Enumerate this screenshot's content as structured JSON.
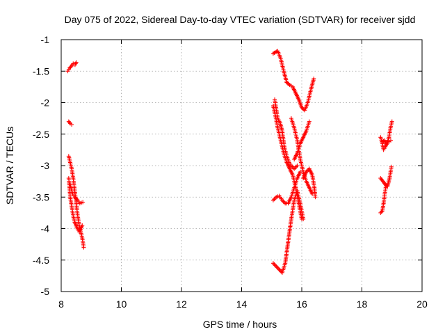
{
  "chart_data": {
    "type": "scatter",
    "title": "Day 075 of 2022, Sidereal Day-to-day VTEC variation (SDTVAR) for receiver sjdd",
    "xlabel": "GPS time / hours",
    "ylabel": "SDTVAR / TECUs",
    "xlim": [
      8,
      20
    ],
    "ylim": [
      -5,
      -1
    ],
    "xticks": [
      8,
      10,
      12,
      14,
      16,
      18,
      20
    ],
    "yticks": [
      -5,
      -4.5,
      -4,
      -3.5,
      -3,
      -2.5,
      -2,
      -1.5,
      -1
    ],
    "grid": true,
    "marker": "+",
    "color": "#ff0000",
    "series": [
      {
        "name": "satellite tracks",
        "tracks": [
          [
            [
              8.22,
              -1.5
            ],
            [
              8.28,
              -1.45
            ],
            [
              8.34,
              -1.42
            ],
            [
              8.4,
              -1.38
            ],
            [
              8.46,
              -1.4
            ],
            [
              8.5,
              -1.36
            ]
          ],
          [
            [
              8.25,
              -2.3
            ],
            [
              8.3,
              -2.33
            ],
            [
              8.35,
              -2.35
            ]
          ],
          [
            [
              8.25,
              -2.85
            ],
            [
              8.3,
              -2.95
            ],
            [
              8.35,
              -3.05
            ],
            [
              8.4,
              -3.2
            ],
            [
              8.45,
              -3.4
            ],
            [
              8.5,
              -3.6
            ],
            [
              8.55,
              -3.8
            ],
            [
              8.6,
              -3.95
            ],
            [
              8.65,
              -4.05
            ],
            [
              8.7,
              -4.15
            ],
            [
              8.75,
              -4.3
            ]
          ],
          [
            [
              8.25,
              -3.2
            ],
            [
              8.28,
              -3.35
            ],
            [
              8.3,
              -3.5
            ],
            [
              8.35,
              -3.65
            ],
            [
              8.4,
              -3.8
            ],
            [
              8.45,
              -3.9
            ],
            [
              8.52,
              -3.98
            ],
            [
              8.6,
              -4.05
            ],
            [
              8.7,
              -3.95
            ]
          ],
          [
            [
              8.3,
              -3.3
            ],
            [
              8.38,
              -3.45
            ],
            [
              8.45,
              -3.5
            ],
            [
              8.55,
              -3.55
            ],
            [
              8.62,
              -3.6
            ],
            [
              8.72,
              -3.58
            ]
          ],
          [
            [
              15.05,
              -1.22
            ],
            [
              15.12,
              -1.2
            ],
            [
              15.2,
              -1.18
            ],
            [
              15.3,
              -1.3
            ],
            [
              15.4,
              -1.5
            ],
            [
              15.5,
              -1.68
            ],
            [
              15.6,
              -1.72
            ],
            [
              15.7,
              -1.75
            ],
            [
              15.8,
              -1.85
            ],
            [
              15.9,
              -1.95
            ],
            [
              16.0,
              -2.08
            ],
            [
              16.1,
              -2.12
            ],
            [
              16.2,
              -2.0
            ],
            [
              16.3,
              -1.8
            ],
            [
              16.4,
              -1.62
            ]
          ],
          [
            [
              15.1,
              -1.95
            ],
            [
              15.15,
              -2.1
            ],
            [
              15.2,
              -2.25
            ],
            [
              15.28,
              -2.32
            ],
            [
              15.35,
              -2.45
            ],
            [
              15.42,
              -2.7
            ],
            [
              15.5,
              -2.85
            ],
            [
              15.58,
              -2.95
            ],
            [
              15.65,
              -3.0
            ],
            [
              15.75,
              -3.05
            ],
            [
              15.85,
              -3.0
            ]
          ],
          [
            [
              15.05,
              -2.05
            ],
            [
              15.12,
              -2.2
            ],
            [
              15.2,
              -2.4
            ],
            [
              15.3,
              -2.6
            ],
            [
              15.4,
              -2.8
            ],
            [
              15.5,
              -2.95
            ],
            [
              15.6,
              -3.05
            ],
            [
              15.7,
              -3.15
            ],
            [
              15.8,
              -3.35
            ],
            [
              15.9,
              -3.6
            ],
            [
              16.0,
              -3.85
            ]
          ],
          [
            [
              15.05,
              -3.55
            ],
            [
              15.15,
              -3.5
            ],
            [
              15.25,
              -3.48
            ],
            [
              15.35,
              -3.55
            ],
            [
              15.45,
              -3.6
            ],
            [
              15.55,
              -3.6
            ],
            [
              15.65,
              -3.5
            ],
            [
              15.75,
              -3.35
            ],
            [
              15.85,
              -3.2
            ],
            [
              15.95,
              -3.1
            ]
          ],
          [
            [
              15.05,
              -4.55
            ],
            [
              15.15,
              -4.6
            ],
            [
              15.25,
              -4.65
            ],
            [
              15.35,
              -4.7
            ],
            [
              15.45,
              -4.55
            ],
            [
              15.55,
              -4.2
            ],
            [
              15.65,
              -3.85
            ],
            [
              15.75,
              -3.55
            ],
            [
              15.85,
              -3.4
            ],
            [
              15.95,
              -3.6
            ],
            [
              16.05,
              -3.85
            ]
          ],
          [
            [
              15.65,
              -2.25
            ],
            [
              15.75,
              -2.4
            ],
            [
              15.85,
              -2.6
            ],
            [
              15.95,
              -2.9
            ],
            [
              16.05,
              -3.1
            ],
            [
              16.15,
              -3.25
            ],
            [
              16.25,
              -3.35
            ],
            [
              16.35,
              -3.45
            ]
          ],
          [
            [
              15.75,
              -2.9
            ],
            [
              15.85,
              -2.8
            ],
            [
              15.95,
              -2.65
            ],
            [
              16.05,
              -2.55
            ],
            [
              16.15,
              -2.45
            ],
            [
              16.25,
              -2.3
            ]
          ],
          [
            [
              16.05,
              -3.2
            ],
            [
              16.15,
              -3.1
            ],
            [
              16.25,
              -3.05
            ],
            [
              16.35,
              -3.15
            ],
            [
              16.42,
              -3.35
            ],
            [
              16.45,
              -3.5
            ]
          ],
          [
            [
              18.62,
              -2.55
            ],
            [
              18.68,
              -2.65
            ],
            [
              18.72,
              -2.75
            ],
            [
              18.78,
              -2.7
            ],
            [
              18.85,
              -2.62
            ],
            [
              18.9,
              -2.55
            ],
            [
              18.95,
              -2.4
            ],
            [
              19.0,
              -2.3
            ]
          ],
          [
            [
              18.62,
              -3.2
            ],
            [
              18.7,
              -3.25
            ],
            [
              18.78,
              -3.3
            ],
            [
              18.85,
              -3.33
            ],
            [
              18.92,
              -3.2
            ],
            [
              18.98,
              -3.02
            ]
          ],
          [
            [
              18.62,
              -3.75
            ],
            [
              18.68,
              -3.72
            ],
            [
              18.72,
              -3.6
            ],
            [
              18.76,
              -3.45
            ],
            [
              18.8,
              -3.32
            ]
          ],
          [
            [
              18.68,
              -2.62
            ],
            [
              18.75,
              -2.6
            ],
            [
              18.82,
              -2.66
            ],
            [
              18.9,
              -2.62
            ],
            [
              18.96,
              -2.6
            ]
          ]
        ]
      }
    ]
  }
}
